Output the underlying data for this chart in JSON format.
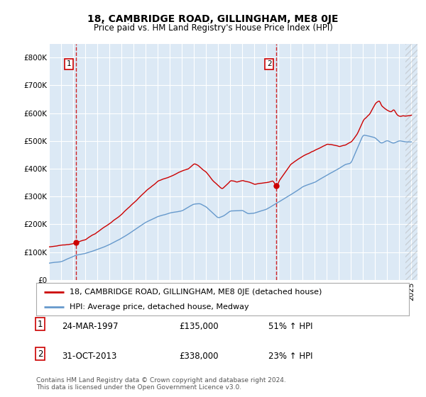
{
  "title": "18, CAMBRIDGE ROAD, GILLINGHAM, ME8 0JE",
  "subtitle": "Price paid vs. HM Land Registry's House Price Index (HPI)",
  "ylim": [
    0,
    850000
  ],
  "yticks": [
    0,
    100000,
    200000,
    300000,
    400000,
    500000,
    600000,
    700000,
    800000
  ],
  "ytick_labels": [
    "£0",
    "£100K",
    "£200K",
    "£300K",
    "£400K",
    "£500K",
    "£600K",
    "£700K",
    "£800K"
  ],
  "plot_bg_color": "#dce9f5",
  "grid_color": "#ffffff",
  "red_line_color": "#cc0000",
  "blue_line_color": "#6699cc",
  "marker1_date": 1997.23,
  "marker1_value": 135000,
  "marker2_date": 2013.83,
  "marker2_value": 338000,
  "legend_line1": "18, CAMBRIDGE ROAD, GILLINGHAM, ME8 0JE (detached house)",
  "legend_line2": "HPI: Average price, detached house, Medway",
  "table_row1": [
    "1",
    "24-MAR-1997",
    "£135,000",
    "51% ↑ HPI"
  ],
  "table_row2": [
    "2",
    "31-OCT-2013",
    "£338,000",
    "23% ↑ HPI"
  ],
  "footnote": "Contains HM Land Registry data © Crown copyright and database right 2024.\nThis data is licensed under the Open Government Licence v3.0.",
  "title_fontsize": 10,
  "subtitle_fontsize": 8.5,
  "tick_fontsize": 7.5,
  "legend_fontsize": 8,
  "table_fontsize": 8.5,
  "footnote_fontsize": 6.5
}
